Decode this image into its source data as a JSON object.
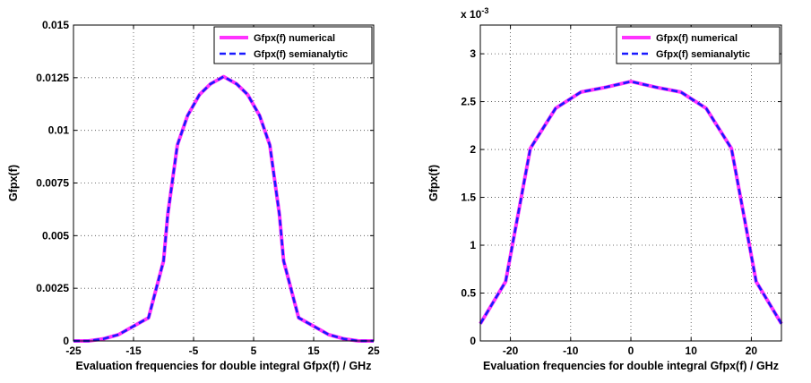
{
  "chart_data": [
    {
      "type": "line",
      "title": "",
      "xlabel": "Evaluation frequencies for double integral Gfpx(f) / GHz",
      "ylabel": "Gfpx(f)",
      "xlim": [
        -25,
        25
      ],
      "ylim": [
        0,
        0.015
      ],
      "xticks": [
        -25,
        -15,
        -5,
        5,
        15,
        25
      ],
      "xtick_labels": [
        "-25",
        "-15",
        "-5",
        "5",
        "15",
        "25"
      ],
      "yticks": [
        0,
        0.0025,
        0.005,
        0.0075,
        0.01,
        0.0125,
        0.015
      ],
      "ytick_labels": [
        "0",
        "0.0025",
        "0.005",
        "0.0075",
        "0.01",
        "0.0125",
        "0.015"
      ],
      "y_exponent_label": "",
      "grid": true,
      "legend_position": "top-right",
      "x": [
        -25,
        -22.5,
        -20,
        -17.5,
        -15,
        -12.5,
        -10,
        -9.3,
        -7.7,
        -6,
        -4,
        -2.2,
        0,
        2.2,
        4,
        6,
        7.7,
        9.3,
        10,
        12.5,
        15,
        17.5,
        20,
        22.5,
        25
      ],
      "series": [
        {
          "name": "Gfpx(f) numerical",
          "color": "#ff33ff",
          "dash": "solid",
          "values": [
            0.0,
            0.0,
            0.0001,
            0.0003,
            0.0007,
            0.0011,
            0.0038,
            0.006,
            0.0093,
            0.0107,
            0.0117,
            0.0122,
            0.01255,
            0.0122,
            0.0117,
            0.0107,
            0.0093,
            0.006,
            0.0038,
            0.0011,
            0.0007,
            0.0003,
            0.0001,
            0.0,
            0.0
          ]
        },
        {
          "name": "Gfpx(f) semianalytic",
          "color": "#1a1aff",
          "dash": "dashed",
          "values": [
            0.0,
            0.0,
            0.0001,
            0.0003,
            0.0007,
            0.0011,
            0.0038,
            0.006,
            0.0093,
            0.0107,
            0.0117,
            0.0122,
            0.01255,
            0.0122,
            0.0117,
            0.0107,
            0.0093,
            0.006,
            0.0038,
            0.0011,
            0.0007,
            0.0003,
            0.0001,
            0.0,
            0.0
          ]
        }
      ]
    },
    {
      "type": "line",
      "title": "",
      "xlabel": "Evaluation frequencies for double integral Gfpx(f) / GHz",
      "ylabel": "Gfpx(f)",
      "xlim": [
        -25,
        25
      ],
      "ylim": [
        0,
        3.3
      ],
      "xticks": [
        -20,
        -10,
        0,
        10,
        20
      ],
      "xtick_labels": [
        "-20",
        "-10",
        "0",
        "10",
        "20"
      ],
      "yticks": [
        0,
        0.5,
        1,
        1.5,
        2,
        2.5,
        3
      ],
      "ytick_labels": [
        "0",
        "0.5",
        "1",
        "1.5",
        "2",
        "2.5",
        "3"
      ],
      "y_exponent_label": "x 10",
      "y_exponent_power": "-3",
      "grid": true,
      "legend_position": "top-right",
      "x": [
        -25,
        -20.8,
        -16.7,
        -12.5,
        -8.3,
        -4.2,
        0,
        4.2,
        8.3,
        12.5,
        16.7,
        20.8,
        25
      ],
      "series": [
        {
          "name": "Gfpx(f) numerical",
          "color": "#ff33ff",
          "dash": "solid",
          "values": [
            0.18,
            0.62,
            2.01,
            2.43,
            2.6,
            2.65,
            2.71,
            2.65,
            2.6,
            2.43,
            2.01,
            0.62,
            0.18
          ]
        },
        {
          "name": "Gfpx(f) semianalytic",
          "color": "#1a1aff",
          "dash": "dashed",
          "values": [
            0.18,
            0.62,
            2.01,
            2.43,
            2.6,
            2.65,
            2.71,
            2.65,
            2.6,
            2.43,
            2.01,
            0.62,
            0.18
          ]
        }
      ]
    }
  ]
}
